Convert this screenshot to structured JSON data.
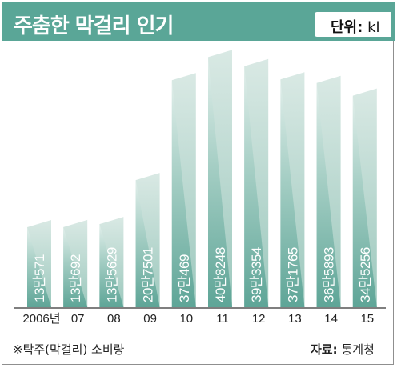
{
  "header": {
    "title": "주춤한 막걸리 인기",
    "unit_label": "단위:",
    "unit": "kl"
  },
  "chart_data": {
    "type": "bar",
    "categories": [
      "2006년",
      "07",
      "08",
      "09",
      "10",
      "11",
      "12",
      "13",
      "14",
      "15"
    ],
    "values": [
      130571,
      130692,
      135629,
      207501,
      370469,
      408248,
      393354,
      371765,
      365893,
      345256
    ],
    "value_labels": [
      "13만571",
      "13만692",
      "13만5629",
      "20만7501",
      "37만469",
      "40만8248",
      "39만3354",
      "37만1765",
      "36만5893",
      "34만5256"
    ],
    "title": "주춤한 막걸리 인기",
    "ylabel": "",
    "ylim": [
      0,
      410000
    ],
    "grid": false,
    "legend": "none",
    "colors": {
      "bar_front": "#73b3a5",
      "bar_side": "#d4e6e0",
      "header": "#5aa697"
    }
  },
  "footer": {
    "note": "※탁주(막걸리) 소비량",
    "source_label": "자료:",
    "source": "통계청"
  }
}
